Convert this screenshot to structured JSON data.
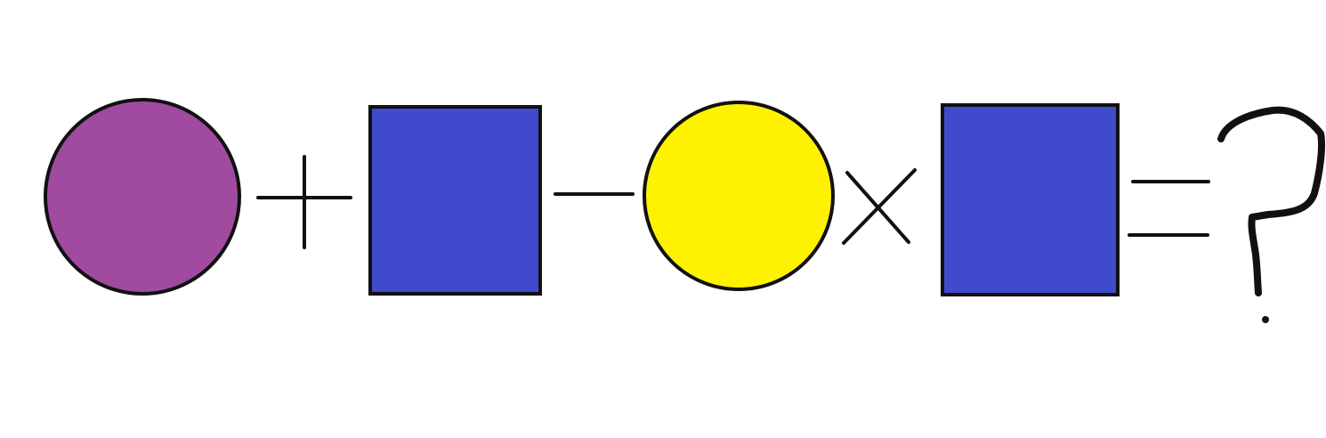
{
  "equation": {
    "terms": [
      {
        "shape": "circle",
        "fill": "#A04BA0"
      },
      {
        "operator": "plus"
      },
      {
        "shape": "square",
        "fill": "#3F4ACC"
      },
      {
        "operator": "minus"
      },
      {
        "shape": "circle",
        "fill": "#FFF200"
      },
      {
        "operator": "times"
      },
      {
        "shape": "square",
        "fill": "#3F4ACC"
      },
      {
        "operator": "equals"
      },
      {
        "unknown": "question-mark"
      }
    ]
  },
  "colors": {
    "background": "#FFFFFF",
    "stroke": "#111111",
    "purple": "#A04BA0",
    "blue": "#3F4ACC",
    "yellow": "#FFF200"
  }
}
